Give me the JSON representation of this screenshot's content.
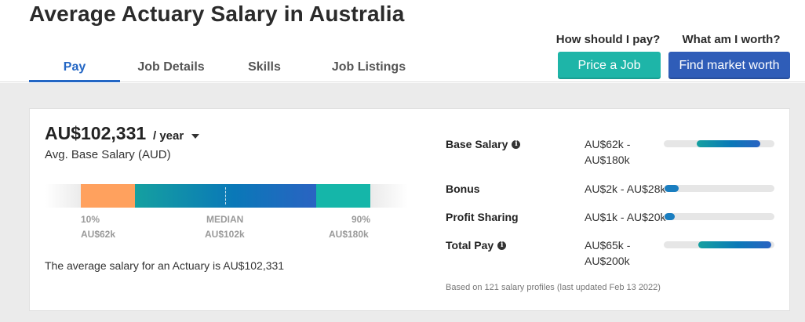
{
  "page": {
    "title": "Average Actuary Salary in Australia"
  },
  "tabs": [
    {
      "label": "Pay",
      "active": true
    },
    {
      "label": "Job Details",
      "active": false
    },
    {
      "label": "Skills",
      "active": false
    },
    {
      "label": "Job Listings",
      "active": false
    }
  ],
  "cta": {
    "price": {
      "question": "How should I pay?",
      "button": "Price a Job"
    },
    "market": {
      "question": "What am I worth?",
      "button": "Find market worth"
    }
  },
  "summary": {
    "amount": "AU$102,331",
    "period": "/ year",
    "label": "Avg. Base Salary (AUD)",
    "description": "The average salary for an Actuary is AU$102,331"
  },
  "range": {
    "p10": {
      "label": "10%",
      "value": "AU$62k"
    },
    "median": {
      "label": "MEDIAN",
      "value": "AU$102k"
    },
    "p90": {
      "label": "90%",
      "value": "AU$180k"
    }
  },
  "compensation": [
    {
      "name": "Base Salary",
      "info": true,
      "range_line1": "AU$62k -",
      "range_line2": "AU$180k",
      "low": 62,
      "high": 180
    },
    {
      "name": "Bonus",
      "info": false,
      "range_line1": "AU$2k - AU$28k",
      "range_line2": "",
      "low": 2,
      "high": 28
    },
    {
      "name": "Profit Sharing",
      "info": false,
      "range_line1": "AU$1k - AU$20k",
      "range_line2": "",
      "low": 1,
      "high": 20
    },
    {
      "name": "Total Pay",
      "info": true,
      "range_line1": "AU$65k -",
      "range_line2": "AU$200k",
      "low": 65,
      "high": 200
    }
  ],
  "footnote": "Based on 121 salary profiles (last updated Feb 13 2022)",
  "colors": {
    "accent": "#2366c4",
    "teal_button": "#1eb5a8",
    "blue_button": "#2f5db8",
    "p10_segment": "#ffa15e",
    "p90_segment": "#15b6a9"
  },
  "icons": {
    "info": "info-icon",
    "dropdown": "chevron-down-icon"
  }
}
